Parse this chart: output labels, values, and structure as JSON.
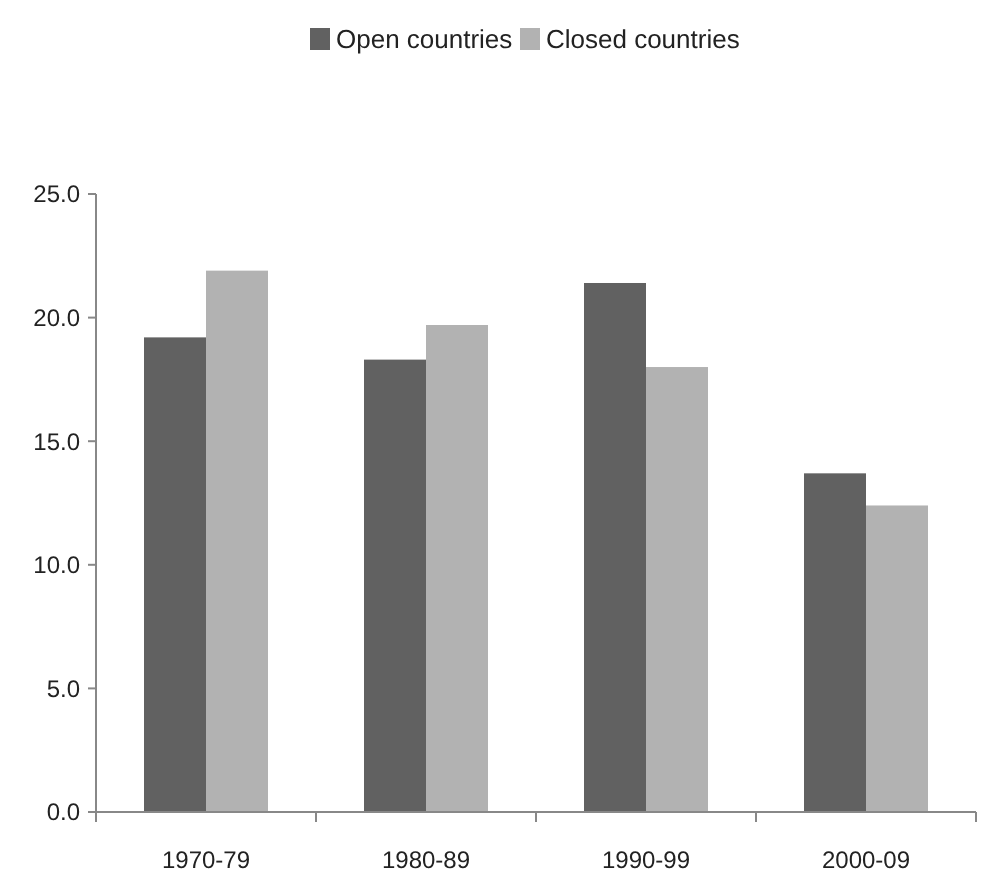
{
  "chart_data": {
    "type": "bar",
    "categories": [
      "1970-79",
      "1980-89",
      "1990-99",
      "2000-09"
    ],
    "series": [
      {
        "name": "Open countries",
        "color": "#616161",
        "values": [
          19.2,
          18.3,
          21.4,
          13.7
        ]
      },
      {
        "name": "Closed countries",
        "color": "#b2b2b2",
        "values": [
          21.9,
          19.7,
          18.0,
          12.4
        ]
      }
    ],
    "ylim": [
      0,
      25
    ],
    "yticks": [
      {
        "value": 0,
        "label": "0.0"
      },
      {
        "value": 5,
        "label": "5.0"
      },
      {
        "value": 10,
        "label": "10.0"
      },
      {
        "value": 15,
        "label": "15.0"
      },
      {
        "value": 20,
        "label": "20.0"
      },
      {
        "value": 25,
        "label": "25.0"
      }
    ],
    "legend": "top",
    "grid": false
  }
}
